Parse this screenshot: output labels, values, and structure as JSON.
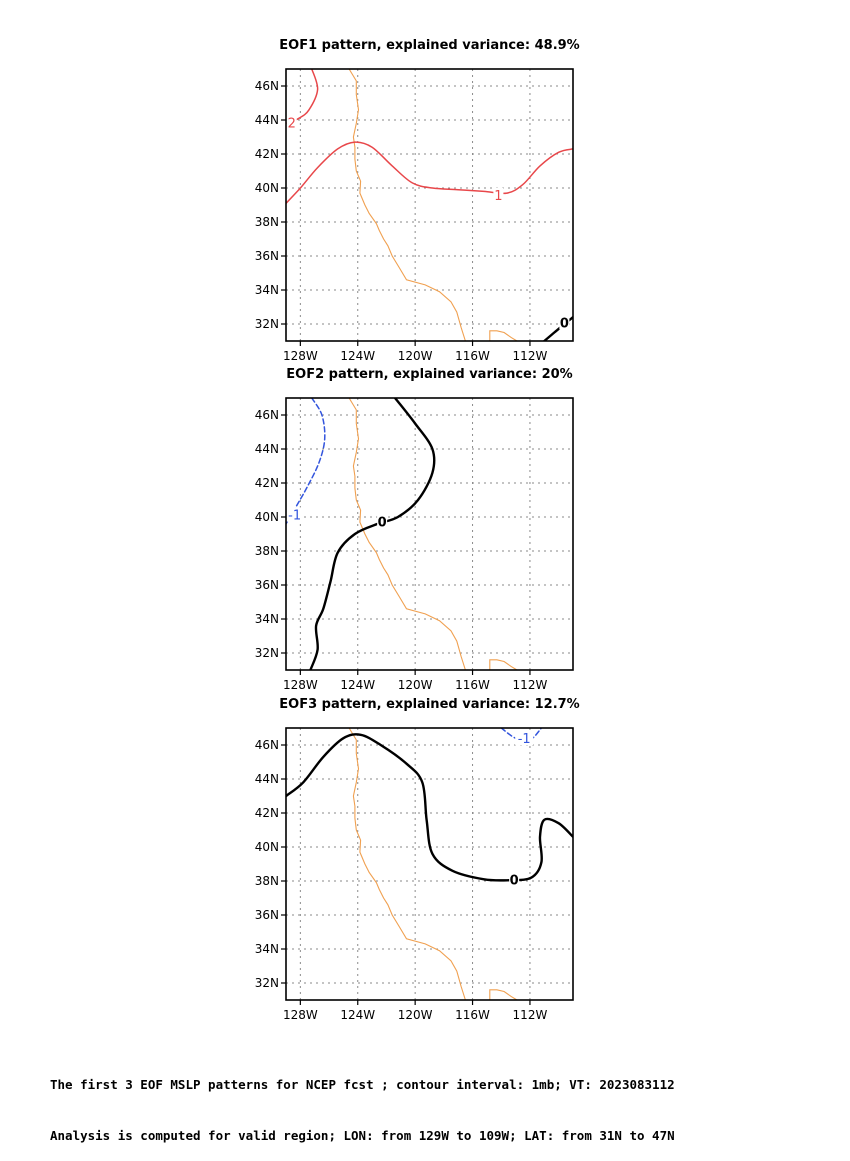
{
  "panels": [
    {
      "title": "EOF1 pattern, explained variance: 48.9%",
      "contours": [
        {
          "level": "2",
          "style": "positive",
          "points": [
            [
              -127.2,
              47.0
            ],
            [
              -126.8,
              45.8
            ],
            [
              -127.4,
              44.6
            ],
            [
              -128.1,
              44.1
            ],
            [
              -129.0,
              43.8
            ]
          ]
        },
        {
          "level": "1",
          "style": "positive",
          "points": [
            [
              -129.0,
              39.1
            ],
            [
              -128.0,
              40.0
            ],
            [
              -126.8,
              41.2
            ],
            [
              -125.4,
              42.3
            ],
            [
              -124.2,
              42.7
            ],
            [
              -123.0,
              42.4
            ],
            [
              -121.6,
              41.3
            ],
            [
              -120.2,
              40.3
            ],
            [
              -118.8,
              40.0
            ],
            [
              -117.0,
              39.9
            ],
            [
              -115.2,
              39.8
            ],
            [
              -113.6,
              39.7
            ],
            [
              -112.5,
              40.2
            ],
            [
              -111.3,
              41.3
            ],
            [
              -110.0,
              42.1
            ],
            [
              -109.0,
              42.3
            ]
          ]
        },
        {
          "level": "0",
          "style": "zero",
          "points": [
            [
              -111.0,
              31.0
            ],
            [
              -110.3,
              31.5
            ],
            [
              -109.6,
              32.0
            ],
            [
              -109.0,
              32.4
            ]
          ]
        }
      ],
      "labels": [
        {
          "text": "2",
          "lon": -128.6,
          "lat": 43.85,
          "style": "positive"
        },
        {
          "text": "1",
          "lon": -114.2,
          "lat": 39.6,
          "style": "positive"
        },
        {
          "text": "0",
          "lon": -109.6,
          "lat": 32.1,
          "style": "zero"
        }
      ]
    },
    {
      "title": "EOF2 pattern, explained variance: 20%",
      "contours": [
        {
          "level": "-1",
          "style": "negative",
          "points": [
            [
              -127.2,
              47.0
            ],
            [
              -126.5,
              46.0
            ],
            [
              -126.3,
              44.6
            ],
            [
              -126.7,
              43.2
            ],
            [
              -127.5,
              41.8
            ],
            [
              -128.3,
              40.6
            ],
            [
              -129.0,
              39.6
            ]
          ]
        },
        {
          "level": "0",
          "style": "zero",
          "points": [
            [
              -121.4,
              47.0
            ],
            [
              -120.0,
              45.5
            ],
            [
              -118.8,
              44.0
            ],
            [
              -118.8,
              42.6
            ],
            [
              -119.8,
              41.0
            ],
            [
              -121.2,
              40.0
            ],
            [
              -122.6,
              39.6
            ],
            [
              -124.2,
              39.0
            ],
            [
              -125.4,
              37.9
            ],
            [
              -125.9,
              36.2
            ],
            [
              -126.4,
              34.6
            ],
            [
              -126.9,
              33.6
            ],
            [
              -126.8,
              32.2
            ],
            [
              -127.3,
              31.0
            ]
          ]
        }
      ],
      "labels": [
        {
          "text": "-1",
          "lon": -128.4,
          "lat": 40.15,
          "style": "negative"
        },
        {
          "text": "0",
          "lon": -122.3,
          "lat": 39.75,
          "style": "zero"
        }
      ]
    },
    {
      "title": "EOF3 pattern, explained variance: 12.7%",
      "contours": [
        {
          "level": "0",
          "style": "zero",
          "points": [
            [
              -129.0,
              43.0
            ],
            [
              -127.8,
              43.8
            ],
            [
              -126.4,
              45.3
            ],
            [
              -125.0,
              46.4
            ],
            [
              -123.8,
              46.6
            ],
            [
              -122.4,
              46.0
            ],
            [
              -120.6,
              44.9
            ],
            [
              -119.5,
              43.8
            ],
            [
              -119.2,
              41.6
            ],
            [
              -118.8,
              39.6
            ],
            [
              -117.4,
              38.6
            ],
            [
              -115.2,
              38.1
            ],
            [
              -113.4,
              38.05
            ],
            [
              -111.9,
              38.2
            ],
            [
              -111.2,
              39.1
            ],
            [
              -111.3,
              40.6
            ],
            [
              -111.0,
              41.6
            ],
            [
              -110.0,
              41.4
            ],
            [
              -109.0,
              40.6
            ]
          ]
        },
        {
          "level": "-1",
          "style": "negative",
          "points": [
            [
              -114.0,
              47.0
            ],
            [
              -113.0,
              46.4
            ],
            [
              -112.0,
              46.3
            ],
            [
              -111.2,
              47.0
            ]
          ]
        }
      ],
      "labels": [
        {
          "text": "0",
          "lon": -113.1,
          "lat": 38.1,
          "style": "zero"
        },
        {
          "text": "-1",
          "lon": -112.4,
          "lat": 46.4,
          "style": "negative"
        }
      ]
    }
  ],
  "coastline": [
    [
      [
        -124.6,
        47.0
      ],
      [
        -124.1,
        46.3
      ],
      [
        -124.1,
        45.5
      ],
      [
        -123.95,
        44.6
      ],
      [
        -124.1,
        43.8
      ],
      [
        -124.3,
        43.0
      ],
      [
        -124.2,
        42.4
      ],
      [
        -124.2,
        41.7
      ],
      [
        -124.1,
        41.0
      ],
      [
        -123.8,
        40.4
      ],
      [
        -123.85,
        39.7
      ],
      [
        -123.5,
        39.0
      ],
      [
        -123.2,
        38.5
      ],
      [
        -122.7,
        37.9
      ],
      [
        -122.5,
        37.5
      ],
      [
        -122.2,
        37.0
      ],
      [
        -121.9,
        36.6
      ],
      [
        -121.6,
        36.0
      ],
      [
        -121.1,
        35.3
      ],
      [
        -120.6,
        34.6
      ],
      [
        -119.3,
        34.3
      ],
      [
        -118.3,
        33.9
      ],
      [
        -117.5,
        33.3
      ],
      [
        -117.1,
        32.7
      ],
      [
        -116.8,
        31.8
      ],
      [
        -116.5,
        31.0
      ]
    ],
    [
      [
        -114.8,
        31.0
      ],
      [
        -114.8,
        31.6
      ],
      [
        -114.3,
        31.6
      ],
      [
        -113.8,
        31.5
      ],
      [
        -113.3,
        31.2
      ],
      [
        -112.9,
        31.0
      ]
    ]
  ],
  "axes": {
    "lon_range": [
      -129,
      -109
    ],
    "lat_range": [
      31,
      47
    ],
    "lon_ticks": [
      -128,
      -124,
      -120,
      -116,
      -112
    ],
    "lat_ticks": [
      32,
      34,
      36,
      38,
      40,
      42,
      44,
      46
    ],
    "lon_tick_labels": [
      "128W",
      "124W",
      "120W",
      "116W",
      "112W"
    ],
    "lat_tick_labels": [
      "32N",
      "34N",
      "36N",
      "38N",
      "40N",
      "42N",
      "44N",
      "46N"
    ]
  },
  "colors": {
    "positive": "#e8474a",
    "negative": "#3355dd",
    "zero": "#000000",
    "coast": "#f0a050",
    "grid": "#8a8a8a"
  },
  "footer": {
    "line1": "The first 3 EOF MSLP patterns for NCEP fcst ; contour interval: 1mb; VT: 2023083112",
    "line2": "Analysis is computed for valid region; LON: from 129W to 109W; LAT: from 31N to 47N"
  }
}
